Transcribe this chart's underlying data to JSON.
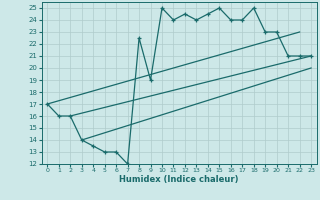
{
  "xlabel": "Humidex (Indice chaleur)",
  "bg_color": "#cde8e8",
  "line_color": "#1a6b6b",
  "grid_color": "#b0cccc",
  "xlim": [
    -0.5,
    23.5
  ],
  "ylim": [
    12,
    25.5
  ],
  "xticks": [
    0,
    1,
    2,
    3,
    4,
    5,
    6,
    7,
    8,
    9,
    10,
    11,
    12,
    13,
    14,
    15,
    16,
    17,
    18,
    19,
    20,
    21,
    22,
    23
  ],
  "yticks": [
    12,
    13,
    14,
    15,
    16,
    17,
    18,
    19,
    20,
    21,
    22,
    23,
    24,
    25
  ],
  "line1_x": [
    0,
    1,
    2,
    3,
    4,
    5,
    6,
    7,
    8,
    9,
    10,
    11,
    12,
    13,
    14,
    15,
    16,
    17,
    18,
    19,
    20,
    21,
    22,
    23
  ],
  "line1_y": [
    17,
    16,
    16,
    14,
    13.5,
    13,
    13,
    12,
    22.5,
    19,
    25,
    24,
    24.5,
    24,
    24.5,
    25,
    24,
    24,
    25,
    23,
    23,
    21,
    21,
    21
  ],
  "line2_x": [
    0,
    22
  ],
  "line2_y": [
    17,
    23
  ],
  "line3_x": [
    2,
    23
  ],
  "line3_y": [
    16,
    21
  ],
  "line4_x": [
    3,
    23
  ],
  "line4_y": [
    14,
    20
  ]
}
